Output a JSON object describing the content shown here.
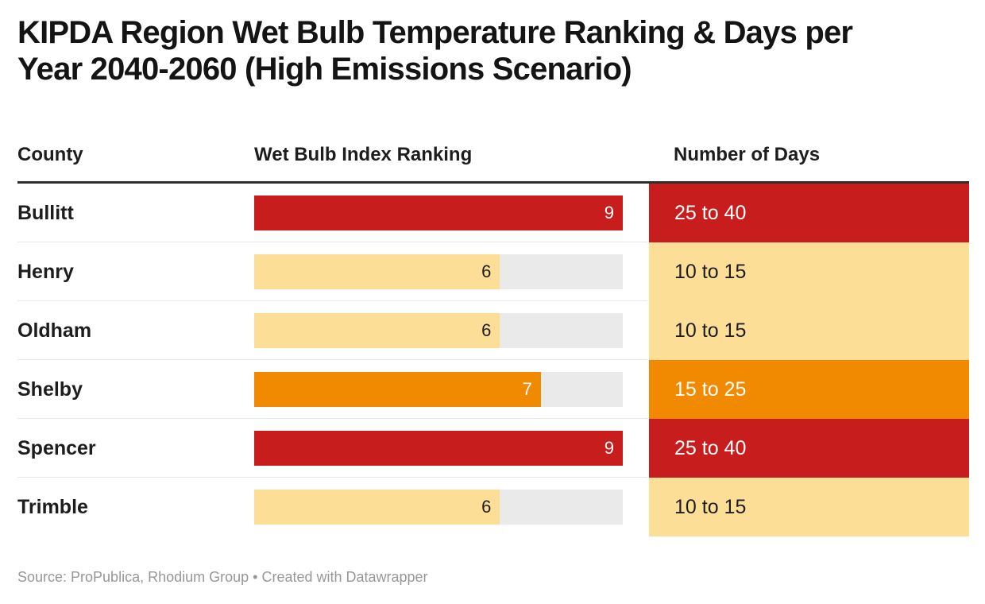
{
  "title": {
    "line1": "KIPDA Region Wet Bulb Temperature Ranking & Days per",
    "line2": "Year 2040-2060 (High Emissions Scenario)"
  },
  "chart_data": {
    "type": "table",
    "columns": [
      "County",
      "Wet Bulb Index Ranking",
      "Number of Days"
    ],
    "ranking_axis": {
      "min": 0,
      "max": 9
    },
    "rows": [
      {
        "county": "Bullitt",
        "ranking": 9,
        "days": "25 to 40",
        "level": "high"
      },
      {
        "county": "Henry",
        "ranking": 6,
        "days": "10 to 15",
        "level": "low"
      },
      {
        "county": "Oldham",
        "ranking": 6,
        "days": "10 to 15",
        "level": "low"
      },
      {
        "county": "Shelby",
        "ranking": 7,
        "days": "15 to 25",
        "level": "medium"
      },
      {
        "county": "Spencer",
        "ranking": 9,
        "days": "25 to 40",
        "level": "high"
      },
      {
        "county": "Trimble",
        "ranking": 6,
        "days": "10 to 15",
        "level": "low"
      }
    ],
    "colors": {
      "high": {
        "bg": "#c71e1d",
        "text": "#ffffff"
      },
      "medium": {
        "bg": "#f18a00",
        "text": "#ffffff"
      },
      "low": {
        "bg": "#fcde96",
        "text": "#1d1d1d"
      },
      "track": "#eaeaea"
    },
    "layout_hints": {
      "bar_labels": "inside-end",
      "grid": "off",
      "legend": "none"
    }
  },
  "footer": {
    "text": "Source: ProPublica, Rhodium Group • Created with Datawrapper"
  }
}
